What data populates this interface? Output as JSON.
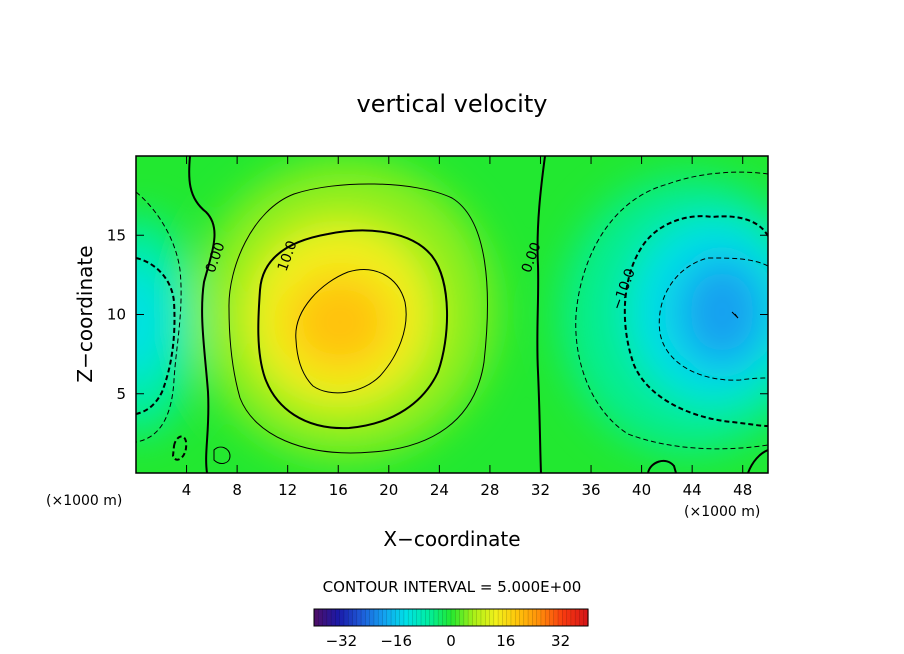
{
  "chart_data": {
    "type": "heatmap",
    "title": "vertical velocity",
    "xlabel": "X−coordinate",
    "ylabel": "Z−coordinate",
    "x_unit_left": "(×1000 m)",
    "x_unit_right": "(×1000 m)",
    "xlim": [
      0,
      50
    ],
    "ylim": [
      0,
      20
    ],
    "x_ticks": [
      {
        "value": 4,
        "label": "4"
      },
      {
        "value": 8,
        "label": "8"
      },
      {
        "value": 12,
        "label": "12"
      },
      {
        "value": 16,
        "label": "16"
      },
      {
        "value": 20,
        "label": "20"
      },
      {
        "value": 24,
        "label": "24"
      },
      {
        "value": 28,
        "label": "28"
      },
      {
        "value": 32,
        "label": "32"
      },
      {
        "value": 36,
        "label": "36"
      },
      {
        "value": 40,
        "label": "40"
      },
      {
        "value": 44,
        "label": "44"
      },
      {
        "value": 48,
        "label": "48"
      }
    ],
    "y_ticks": [
      {
        "value": 5,
        "label": "5"
      },
      {
        "value": 10,
        "label": "10"
      },
      {
        "value": 15,
        "label": "15"
      }
    ],
    "contour_interval_label": "CONTOUR INTERVAL = 5.000E+00",
    "contour_interval": 5,
    "contour_labels": [
      {
        "text": "0.00",
        "x": 6.6,
        "z": 13.5
      },
      {
        "text": "10.0",
        "x": 12.3,
        "z": 13.6
      },
      {
        "text": "0.00",
        "x": 31.6,
        "z": 13.5
      },
      {
        "text": "−10.0",
        "x": 38.9,
        "z": 11.5
      }
    ],
    "features": [
      {
        "name": "updraft",
        "x": 17,
        "z": 9.5,
        "peak": 21
      },
      {
        "name": "downdraft",
        "x": 47,
        "z": 10,
        "peak": -23
      },
      {
        "name": "left-edge downdraft",
        "x": 0.5,
        "z": 10,
        "peak": -14
      }
    ],
    "colorbar": {
      "range": [
        -40,
        40
      ],
      "ticks": [
        {
          "value": -32,
          "label": "−32"
        },
        {
          "value": -16,
          "label": "−16"
        },
        {
          "value": 0,
          "label": "0"
        },
        {
          "value": 16,
          "label": "16"
        },
        {
          "value": 32,
          "label": "32"
        }
      ]
    },
    "colors": {
      "palette": [
        "#4b0f6b",
        "#1a1aa8",
        "#1e5ad8",
        "#14a0f0",
        "#00e0e6",
        "#00eea0",
        "#22e830",
        "#a8f018",
        "#f2f01a",
        "#ffc20a",
        "#ff8a0a",
        "#f83a10",
        "#d81818"
      ]
    }
  }
}
